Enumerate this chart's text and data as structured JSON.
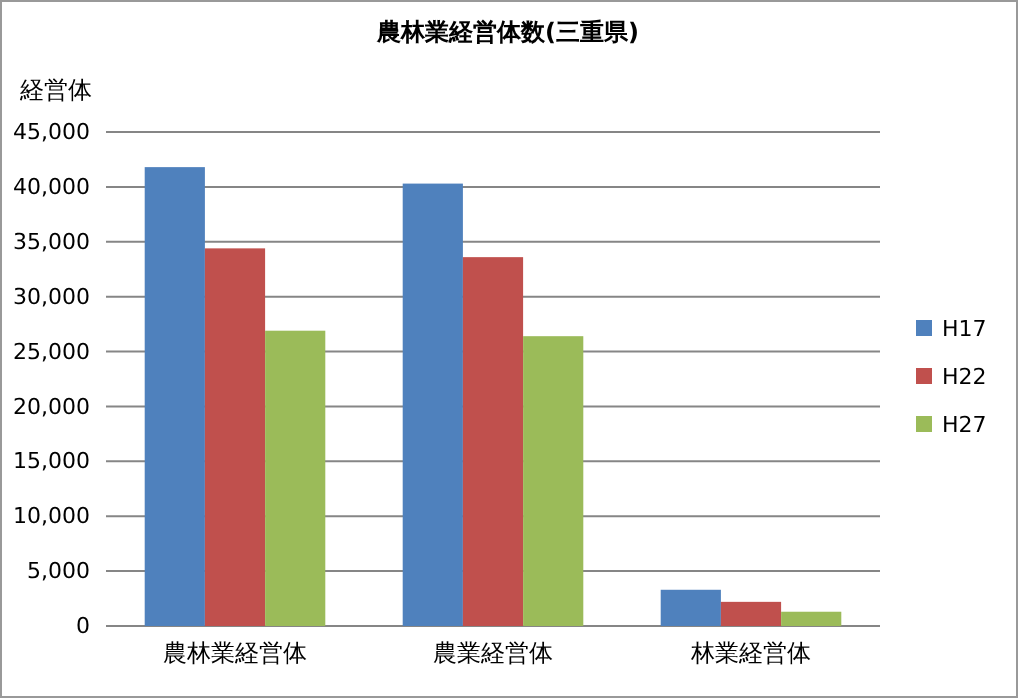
{
  "chart_data": {
    "type": "bar",
    "title": "農林業経営体数(三重県)",
    "ylabel": "経営体",
    "categories": [
      "農林業経営体",
      "農業経営体",
      "林業経営体"
    ],
    "series": [
      {
        "name": "H17",
        "color": "#4f81bd",
        "values": [
          41800,
          40300,
          3300
        ]
      },
      {
        "name": "H22",
        "color": "#c0504d",
        "values": [
          34400,
          33600,
          2200
        ]
      },
      {
        "name": "H27",
        "color": "#9bbb59",
        "values": [
          26900,
          26400,
          1300
        ]
      }
    ],
    "ylim": [
      0,
      45000
    ],
    "yticks": [
      {
        "value": 0,
        "label": "0"
      },
      {
        "value": 5000,
        "label": "5,000"
      },
      {
        "value": 10000,
        "label": "10,000"
      },
      {
        "value": 15000,
        "label": "15,000"
      },
      {
        "value": 20000,
        "label": "20,000"
      },
      {
        "value": 25000,
        "label": "25,000"
      },
      {
        "value": 30000,
        "label": "30,000"
      },
      {
        "value": 35000,
        "label": "35,000"
      },
      {
        "value": 40000,
        "label": "40,000"
      },
      {
        "value": 45000,
        "label": "45,000"
      }
    ],
    "grid": "y",
    "legend": "right"
  }
}
